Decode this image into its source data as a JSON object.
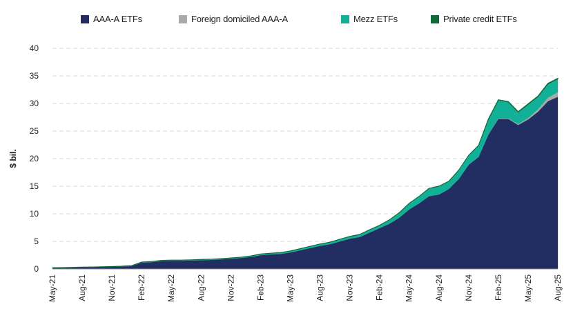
{
  "chart_data": {
    "type": "area",
    "stacked": true,
    "title": "",
    "xlabel": "",
    "ylabel": "$ bil.",
    "ylim": [
      0,
      40
    ],
    "yticks": [
      0,
      5,
      10,
      15,
      20,
      25,
      30,
      35,
      40
    ],
    "grid": "horizontal dashed",
    "legend_position": "top",
    "x": [
      "May-21",
      "Jun-21",
      "Jul-21",
      "Aug-21",
      "Sep-21",
      "Oct-21",
      "Nov-21",
      "Dec-21",
      "Jan-22",
      "Feb-22",
      "Mar-22",
      "Apr-22",
      "May-22",
      "Jun-22",
      "Jul-22",
      "Aug-22",
      "Sep-22",
      "Oct-22",
      "Nov-22",
      "Dec-22",
      "Jan-23",
      "Feb-23",
      "Mar-23",
      "Apr-23",
      "May-23",
      "Jun-23",
      "Jul-23",
      "Aug-23",
      "Sep-23",
      "Oct-23",
      "Nov-23",
      "Dec-23",
      "Jan-24",
      "Feb-24",
      "Mar-24",
      "Apr-24",
      "May-24",
      "Jun-24",
      "Jul-24",
      "Aug-24",
      "Sep-24",
      "Oct-24",
      "Nov-24",
      "Dec-24",
      "Jan-25",
      "Feb-25",
      "Mar-25",
      "Apr-25",
      "May-25",
      "Jun-25",
      "Jul-25",
      "Aug-25"
    ],
    "xtick_labels": [
      "May-21",
      "Aug-21",
      "Nov-21",
      "Feb-22",
      "May-22",
      "Aug-22",
      "Nov-22",
      "Feb-23",
      "May-23",
      "Aug-23",
      "Nov-23",
      "Feb-24",
      "May-24",
      "Aug-24",
      "Nov-24",
      "Feb-25",
      "May-25",
      "Aug-25"
    ],
    "series": [
      {
        "name": "AAA-A ETFs",
        "color": "#222d62",
        "values": [
          0.2,
          0.22,
          0.25,
          0.3,
          0.32,
          0.35,
          0.4,
          0.45,
          0.55,
          1.15,
          1.25,
          1.45,
          1.5,
          1.5,
          1.55,
          1.6,
          1.65,
          1.75,
          1.85,
          2.0,
          2.2,
          2.5,
          2.65,
          2.75,
          3.0,
          3.4,
          3.8,
          4.2,
          4.5,
          5.0,
          5.5,
          5.8,
          6.6,
          7.4,
          8.2,
          9.3,
          10.8,
          11.9,
          13.2,
          13.5,
          14.5,
          16.3,
          18.9,
          20.3,
          24.4,
          27.2,
          27.2,
          26.1,
          27.1,
          28.5,
          30.4,
          31.2
        ]
      },
      {
        "name": "Foreign domiciled AAA-A",
        "color": "#a9a9a9",
        "values": [
          0,
          0,
          0,
          0,
          0,
          0,
          0,
          0,
          0,
          0,
          0,
          0,
          0,
          0,
          0,
          0,
          0,
          0,
          0,
          0,
          0,
          0,
          0,
          0,
          0,
          0,
          0,
          0,
          0,
          0,
          0,
          0,
          0,
          0,
          0,
          0,
          0,
          0,
          0,
          0,
          0,
          0,
          0,
          0,
          0.05,
          0.1,
          0.1,
          0.15,
          0.25,
          0.45,
          0.65,
          0.85
        ]
      },
      {
        "name": "Mezz ETFs",
        "color": "#12b096",
        "values": [
          0.02,
          0.02,
          0.03,
          0.03,
          0.03,
          0.04,
          0.04,
          0.05,
          0.05,
          0.1,
          0.1,
          0.1,
          0.1,
          0.1,
          0.1,
          0.12,
          0.12,
          0.12,
          0.13,
          0.13,
          0.15,
          0.2,
          0.2,
          0.22,
          0.25,
          0.28,
          0.3,
          0.32,
          0.35,
          0.38,
          0.4,
          0.45,
          0.5,
          0.5,
          0.7,
          0.9,
          1.1,
          1.25,
          1.4,
          1.5,
          1.4,
          1.6,
          1.7,
          2.1,
          2.7,
          3.3,
          3.0,
          2.2,
          2.5,
          2.3,
          2.5,
          2.4
        ]
      },
      {
        "name": "Private credit ETFs",
        "color": "#0f6b3a",
        "values": [
          0,
          0,
          0,
          0,
          0,
          0,
          0,
          0,
          0,
          0,
          0,
          0,
          0,
          0,
          0,
          0,
          0,
          0,
          0,
          0,
          0,
          0,
          0,
          0,
          0,
          0,
          0,
          0,
          0,
          0,
          0,
          0,
          0,
          0,
          0,
          0,
          0,
          0,
          0,
          0,
          0,
          0,
          0,
          0,
          0.05,
          0.05,
          0.05,
          0.06,
          0.07,
          0.08,
          0.09,
          0.1
        ]
      }
    ]
  }
}
